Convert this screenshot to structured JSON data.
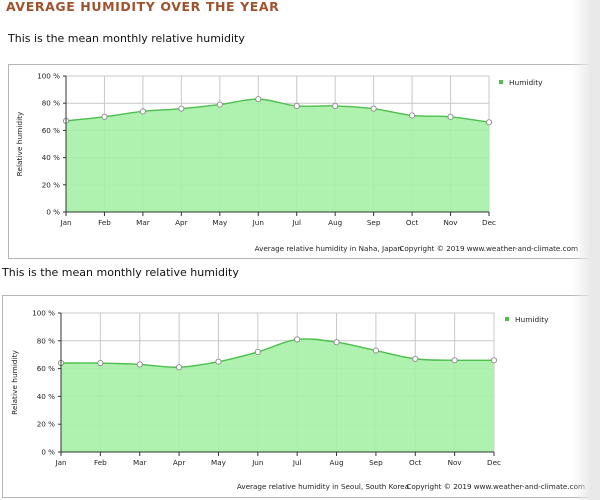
{
  "page": {
    "title": "AVERAGE HUMIDITY OVER THE YEAR",
    "subtitle_1": "This is the mean monthly relative humidity",
    "subtitle_2": "This is the mean monthly relative humidity"
  },
  "colors": {
    "title": "#a0522d",
    "area_fill": "#a6efa6",
    "line": "#4cbf4c",
    "grid": "#c8c8c8",
    "marker_fill": "#ffffff",
    "marker_stroke": "#8a8a8a"
  },
  "chart_data": [
    {
      "type": "area",
      "categories": [
        "Jan",
        "Feb",
        "Mar",
        "Apr",
        "May",
        "Jun",
        "Jul",
        "Aug",
        "Sep",
        "Oct",
        "Nov",
        "Dec"
      ],
      "series": [
        {
          "name": "Humidity",
          "values": [
            67,
            70,
            74,
            76,
            79,
            83,
            78,
            78,
            76,
            71,
            70,
            66
          ]
        }
      ],
      "ylabel": "Relative humidity",
      "yticks": [
        "0 %",
        "20 %",
        "40 %",
        "60 %",
        "80 %",
        "100 %"
      ],
      "ylim": [
        0,
        100
      ],
      "grid": true,
      "legend": "top-right",
      "caption": "Average relative humidity in Naha, Japan",
      "copyright": "Copyright © 2019 www.weather-and-climate.com"
    },
    {
      "type": "area",
      "categories": [
        "Jan",
        "Feb",
        "Mar",
        "Apr",
        "May",
        "Jun",
        "Jul",
        "Aug",
        "Sep",
        "Oct",
        "Nov",
        "Dec"
      ],
      "series": [
        {
          "name": "Humidity",
          "values": [
            64,
            64,
            63,
            61,
            65,
            72,
            81,
            79,
            73,
            67,
            66,
            66
          ]
        }
      ],
      "ylabel": "Relative humidity",
      "yticks": [
        "0 %",
        "20 %",
        "40 %",
        "60 %",
        "80 %",
        "100 %"
      ],
      "ylim": [
        0,
        100
      ],
      "grid": true,
      "legend": "top-right",
      "caption": "Average relative humidity in Seoul, South Korea",
      "copyright": "Copyright © 2019 www.weather-and-climate.com"
    }
  ]
}
